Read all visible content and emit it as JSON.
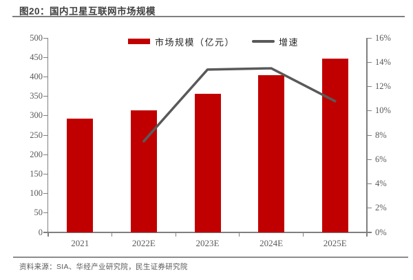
{
  "title": "图20：国内卫星互联网市场规模",
  "legend": {
    "bars": "市场规模（亿元）",
    "line": "增速"
  },
  "source": "资料来源：SIA、华经产业研究院，民生证券研究院",
  "colors": {
    "bar": "#C00000",
    "line": "#595959",
    "axis": "#7F7F7F",
    "axis_text": "#595959",
    "title_text": "#404040"
  },
  "chart_data": {
    "type": "bar",
    "subtype": "bar+line combo, dual axis",
    "title": "图20：国内卫星互联网市场规模",
    "categories": [
      "2021",
      "2022E",
      "2023E",
      "2024E",
      "2025E"
    ],
    "series": [
      {
        "name": "市场规模（亿元）",
        "type": "bar",
        "axis": "left",
        "values": [
          292,
          314,
          357,
          404,
          447
        ]
      },
      {
        "name": "增速",
        "type": "line",
        "axis": "right",
        "unit": "%",
        "values": [
          null,
          7.5,
          13.4,
          13.5,
          10.8
        ]
      }
    ],
    "left_axis": {
      "min": 0,
      "max": 500,
      "step": 50
    },
    "right_axis": {
      "min": 0,
      "max": 16,
      "step": 2,
      "format": "percent"
    },
    "grid": false,
    "legend_position": "top-center"
  }
}
